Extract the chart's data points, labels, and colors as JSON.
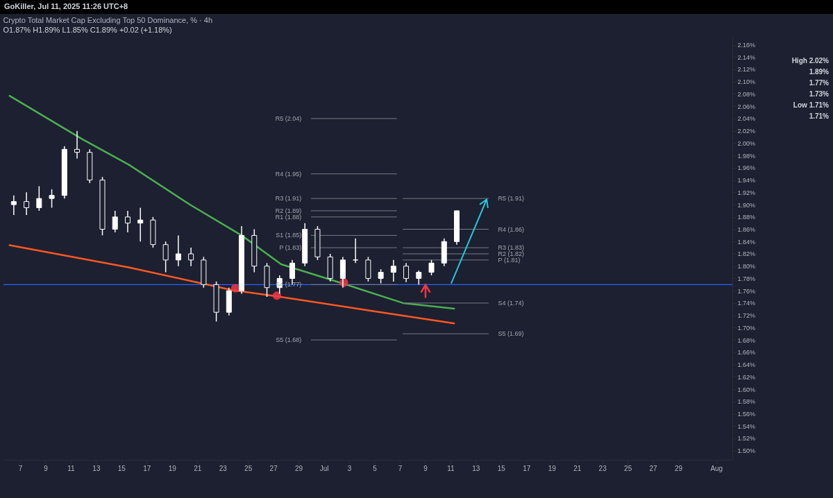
{
  "chart_data": {
    "type": "candlestick",
    "title": "Crypto Total Market Cap Excluding Top 50 Dominance, % · 4h",
    "subtitle": "O1.87%  H1.89%  L1.85%  C1.89%  +0.02 (+1.18%)",
    "color": "#ffffff",
    "x": [
      "2025-06-06T12:00",
      "2025-06-07T12:00",
      "2025-06-08T12:00",
      "2025-06-09T12:00",
      "2025-06-10T12:00",
      "2025-06-11T12:00",
      "2025-06-12T12:00",
      "2025-06-13T12:00",
      "2025-06-14T12:00",
      "2025-06-15T12:00",
      "2025-06-16T12:00",
      "2025-06-17T12:00",
      "2025-06-18T12:00",
      "2025-06-19T12:00",
      "2025-06-20T12:00",
      "2025-06-21T12:00",
      "2025-06-22T12:00",
      "2025-06-23T12:00",
      "2025-06-24T12:00",
      "2025-06-25T12:00",
      "2025-06-26T12:00",
      "2025-06-27T12:00",
      "2025-06-28T12:00",
      "2025-06-29T12:00",
      "2025-06-30T12:00",
      "2025-07-01T12:00",
      "2025-07-02T12:00",
      "2025-07-03T12:00",
      "2025-07-04T12:00",
      "2025-07-05T12:00",
      "2025-07-06T12:00",
      "2025-07-07T12:00",
      "2025-07-08T12:00",
      "2025-07-09T12:00",
      "2025-07-10T12:00",
      "2025-07-11T12:00"
    ],
    "ohlc": [
      [
        1.9,
        1.915,
        1.883,
        1.905
      ],
      [
        1.905,
        1.92,
        1.883,
        1.895
      ],
      [
        1.895,
        1.93,
        1.89,
        1.91
      ],
      [
        1.91,
        1.925,
        1.895,
        1.915
      ],
      [
        1.915,
        1.995,
        1.91,
        1.99
      ],
      [
        1.99,
        2.02,
        1.975,
        1.985
      ],
      [
        1.985,
        1.99,
        1.935,
        1.94
      ],
      [
        1.94,
        1.945,
        1.85,
        1.86
      ],
      [
        1.86,
        1.89,
        1.855,
        1.88
      ],
      [
        1.88,
        1.89,
        1.855,
        1.87
      ],
      [
        1.87,
        1.895,
        1.84,
        1.875
      ],
      [
        1.875,
        1.88,
        1.83,
        1.835
      ],
      [
        1.835,
        1.84,
        1.79,
        1.81
      ],
      [
        1.81,
        1.85,
        1.8,
        1.82
      ],
      [
        1.82,
        1.83,
        1.8,
        1.81
      ],
      [
        1.81,
        1.815,
        1.765,
        1.77
      ],
      [
        1.77,
        1.775,
        1.71,
        1.725
      ],
      [
        1.725,
        1.765,
        1.72,
        1.76
      ],
      [
        1.76,
        1.865,
        1.755,
        1.85
      ],
      [
        1.85,
        1.86,
        1.79,
        1.8
      ],
      [
        1.8,
        1.805,
        1.75,
        1.765
      ],
      [
        1.765,
        1.785,
        1.755,
        1.78
      ],
      [
        1.78,
        1.81,
        1.77,
        1.805
      ],
      [
        1.805,
        1.87,
        1.8,
        1.86
      ],
      [
        1.86,
        1.865,
        1.81,
        1.815
      ],
      [
        1.815,
        1.82,
        1.775,
        1.78
      ],
      [
        1.78,
        1.815,
        1.765,
        1.81
      ],
      [
        1.81,
        1.845,
        1.805,
        1.81
      ],
      [
        1.81,
        1.815,
        1.775,
        1.78
      ],
      [
        1.78,
        1.795,
        1.772,
        1.79
      ],
      [
        1.79,
        1.81,
        1.775,
        1.8
      ],
      [
        1.8,
        1.805,
        1.774,
        1.78
      ],
      [
        1.78,
        1.793,
        1.77,
        1.79
      ],
      [
        1.79,
        1.81,
        1.785,
        1.805
      ],
      [
        1.805,
        1.845,
        1.8,
        1.84
      ],
      [
        1.84,
        1.89,
        1.835,
        1.89
      ]
    ],
    "series": [
      {
        "type": "line",
        "color": "#4caf50",
        "x": [
          "2025-06-06T04:00",
          "2025-06-11T23:00",
          "2025-06-15T14:00",
          "2025-06-20T10:00",
          "2025-06-24T12:00",
          "2025-06-27T15:00",
          "2025-07-02T11:00",
          "2025-07-07T06:00",
          "2025-07-11T07:00"
        ],
        "values": [
          2.077,
          2.006,
          1.965,
          1.9,
          1.85,
          1.803,
          1.772,
          1.74,
          1.731
        ]
      },
      {
        "type": "line",
        "color": "#ff5722",
        "x": [
          "2025-06-06T04:00",
          "2025-06-15T14:00",
          "2025-06-23T18:00",
          "2025-06-27T07:00",
          "2025-07-04T21:00",
          "2025-07-11T07:00"
        ],
        "values": [
          1.834,
          1.798,
          1.761,
          1.751,
          1.727,
          1.707
        ]
      },
      {
        "type": "line",
        "name": "R5 (2.04)",
        "color": "#787b86",
        "x": [
          "2025-06-30T00:00",
          "2025-07-06T18:00"
        ],
        "values": [
          2.04,
          2.04
        ]
      },
      {
        "type": "line",
        "name": "R4 (1.95)",
        "color": "#787b86",
        "x": [
          "2025-06-30T00:00",
          "2025-07-06T18:00"
        ],
        "values": [
          1.95,
          1.95
        ]
      },
      {
        "type": "line",
        "name": "R3 (1.91)",
        "color": "#787b86",
        "x": [
          "2025-06-30T00:00",
          "2025-07-06T18:00"
        ],
        "values": [
          1.91,
          1.91
        ]
      },
      {
        "type": "line",
        "name": "R2 (1.89)",
        "color": "#787b86",
        "x": [
          "2025-06-30T00:00",
          "2025-07-06T18:00"
        ],
        "values": [
          1.89,
          1.89
        ]
      },
      {
        "type": "line",
        "name": "R1 (1.88)",
        "color": "#787b86",
        "x": [
          "2025-06-30T00:00",
          "2025-07-06T18:00"
        ],
        "values": [
          1.88,
          1.88
        ]
      },
      {
        "type": "line",
        "name": "S1 (1.85)",
        "color": "#787b86",
        "x": [
          "2025-06-30T00:00",
          "2025-07-06T18:00"
        ],
        "values": [
          1.85,
          1.85
        ]
      },
      {
        "type": "line",
        "name": "P (1.83)",
        "color": "#787b86",
        "x": [
          "2025-06-30T00:00",
          "2025-07-06T18:00"
        ],
        "values": [
          1.83,
          1.83
        ]
      },
      {
        "type": "line",
        "name": "S4 (1.77)",
        "color": "#787b86",
        "x": [
          "2025-06-30T00:00",
          "2025-07-06T18:00"
        ],
        "values": [
          1.77,
          1.77
        ]
      },
      {
        "type": "line",
        "name": "S5 (1.68)",
        "color": "#787b86",
        "x": [
          "2025-06-30T00:00",
          "2025-07-06T18:00"
        ],
        "values": [
          1.68,
          1.68
        ]
      },
      {
        "type": "line",
        "name": "R5 (1.91)",
        "color": "#787b86",
        "x": [
          "2025-07-07T06:00",
          "2025-07-14T00:00"
        ],
        "values": [
          1.91,
          1.91
        ]
      },
      {
        "type": "line",
        "name": "R4 (1.86)",
        "color": "#787b86",
        "x": [
          "2025-07-07T06:00",
          "2025-07-14T00:00"
        ],
        "values": [
          1.86,
          1.86
        ]
      },
      {
        "type": "line",
        "name": "R3 (1.83)",
        "color": "#787b86",
        "x": [
          "2025-07-07T06:00",
          "2025-07-14T00:00"
        ],
        "values": [
          1.83,
          1.83
        ]
      },
      {
        "type": "line",
        "name": "R2 (1.82)",
        "color": "#787b86",
        "x": [
          "2025-07-07T06:00",
          "2025-07-14T00:00"
        ],
        "values": [
          1.82,
          1.82
        ]
      },
      {
        "type": "line",
        "name": "P (1.81)",
        "color": "#787b86",
        "x": [
          "2025-07-07T06:00",
          "2025-07-14T00:00"
        ],
        "values": [
          1.81,
          1.81
        ]
      },
      {
        "type": "line",
        "name": "S4 (1.74)",
        "color": "#787b86",
        "x": [
          "2025-07-07T06:00",
          "2025-07-14T00:00"
        ],
        "values": [
          1.74,
          1.74
        ]
      },
      {
        "type": "line",
        "name": "S5 (1.69)",
        "color": "#787b86",
        "x": [
          "2025-07-07T06:00",
          "2025-07-14T00:00"
        ],
        "values": [
          1.69,
          1.69
        ]
      },
      {
        "type": "scatter",
        "color": "#f23645",
        "x": [
          "2025-06-24T00:00",
          "2025-06-27T07:00",
          "2025-07-02T14:00"
        ],
        "values": [
          1.764,
          1.752,
          1.773
        ]
      }
    ],
    "ref_lines": [
      {
        "axis": "y",
        "value": 1.77,
        "color": "#2962ff"
      }
    ],
    "annotations": [
      "GoKiller, Jul 11, 2025 11:26 UTC+8",
      "High 2.02%",
      "1.89%",
      "1.77%",
      "1.73%",
      "Low 1.71%",
      "1.71%"
    ],
    "xlim": [
      "2025-06-05T23:00",
      "2025-08-02T00:00"
    ],
    "xticks": [
      {
        "value": "2025-06-07T00:00",
        "label": "7"
      },
      {
        "value": "2025-06-09T00:00",
        "label": "9"
      },
      {
        "value": "2025-06-11T00:00",
        "label": "11"
      },
      {
        "value": "2025-06-13T00:00",
        "label": "13"
      },
      {
        "value": "2025-06-15T00:00",
        "label": "15"
      },
      {
        "value": "2025-06-17T00:00",
        "label": "17"
      },
      {
        "value": "2025-06-19T00:00",
        "label": "19"
      },
      {
        "value": "2025-06-21T00:00",
        "label": "21"
      },
      {
        "value": "2025-06-23T00:00",
        "label": "23"
      },
      {
        "value": "2025-06-25T00:00",
        "label": "25"
      },
      {
        "value": "2025-06-27T00:00",
        "label": "27"
      },
      {
        "value": "2025-06-29T00:00",
        "label": "29"
      },
      {
        "value": "2025-07-01T00:00",
        "label": "Jul"
      },
      {
        "value": "2025-07-03T00:00",
        "label": "3"
      },
      {
        "value": "2025-07-05T00:00",
        "label": "5"
      },
      {
        "value": "2025-07-07T00:00",
        "label": "7"
      },
      {
        "value": "2025-07-09T00:00",
        "label": "9"
      },
      {
        "value": "2025-07-11T00:00",
        "label": "11"
      },
      {
        "value": "2025-07-13T00:00",
        "label": "13"
      },
      {
        "value": "2025-07-15T00:00",
        "label": "15"
      },
      {
        "value": "2025-07-17T00:00",
        "label": "17"
      },
      {
        "value": "2025-07-19T00:00",
        "label": "19"
      },
      {
        "value": "2025-07-21T00:00",
        "label": "21"
      },
      {
        "value": "2025-07-23T00:00",
        "label": "23"
      },
      {
        "value": "2025-07-25T00:00",
        "label": "25"
      },
      {
        "value": "2025-07-27T00:00",
        "label": "27"
      },
      {
        "value": "2025-07-29T00:00",
        "label": "29"
      },
      {
        "value": "2025-08-01T00:00",
        "label": "Aug"
      }
    ],
    "ylim": [
      1.485,
      2.173
    ],
    "yticks": [
      {
        "value": 1.5,
        "label": "1.50%"
      },
      {
        "value": 1.52,
        "label": "1.52%"
      },
      {
        "value": 1.54,
        "label": "1.54%"
      },
      {
        "value": 1.56,
        "label": "1.56%"
      },
      {
        "value": 1.58,
        "label": "1.58%"
      },
      {
        "value": 1.6,
        "label": "1.60%"
      },
      {
        "value": 1.62,
        "label": "1.62%"
      },
      {
        "value": 1.64,
        "label": "1.64%"
      },
      {
        "value": 1.66,
        "label": "1.66%"
      },
      {
        "value": 1.68,
        "label": "1.68%"
      },
      {
        "value": 1.7,
        "label": "1.70%"
      },
      {
        "value": 1.72,
        "label": "1.72%"
      },
      {
        "value": 1.74,
        "label": "1.74%"
      },
      {
        "value": 1.76,
        "label": "1.76%"
      },
      {
        "value": 1.78,
        "label": "1.78%"
      },
      {
        "value": 1.8,
        "label": "1.80%"
      },
      {
        "value": 1.82,
        "label": "1.82%"
      },
      {
        "value": 1.84,
        "label": "1.84%"
      },
      {
        "value": 1.86,
        "label": "1.86%"
      },
      {
        "value": 1.88,
        "label": "1.88%"
      },
      {
        "value": 1.9,
        "label": "1.90%"
      },
      {
        "value": 1.92,
        "label": "1.92%"
      },
      {
        "value": 1.94,
        "label": "1.94%"
      },
      {
        "value": 1.96,
        "label": "1.96%"
      },
      {
        "value": 1.98,
        "label": "1.98%"
      },
      {
        "value": 2,
        "label": "2.00%"
      },
      {
        "value": 2.02,
        "label": "2.02%"
      },
      {
        "value": 2.04,
        "label": "2.04%"
      },
      {
        "value": 2.06,
        "label": "2.06%"
      },
      {
        "value": 2.08,
        "label": "2.08%"
      },
      {
        "value": 2.1,
        "label": "2.10%"
      },
      {
        "value": 2.12,
        "label": "2.12%"
      },
      {
        "value": 2.14,
        "label": "2.14%"
      },
      {
        "value": 2.16,
        "label": "2.16%"
      }
    ],
    "grid": false
  }
}
